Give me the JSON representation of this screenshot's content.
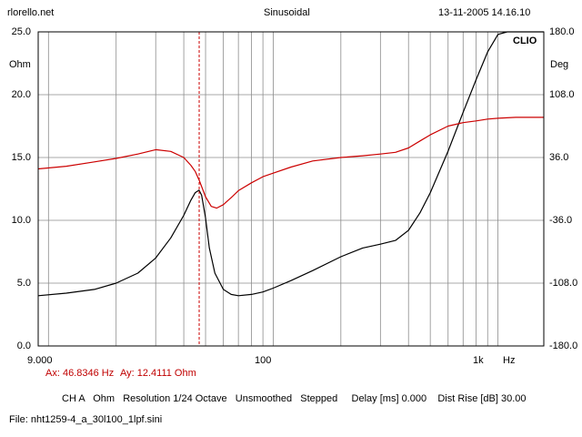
{
  "header": {
    "site": "rlorello.net",
    "title": "Sinusoidal",
    "datetime": "13-11-2005 14.16.10"
  },
  "logo": "CLIO",
  "axes": {
    "left_unit": "Ohm",
    "right_unit": "Deg",
    "x_unit": "Hz",
    "left_ticks": [
      "25.0",
      "20.0",
      "15.0",
      "10.0",
      "5.0",
      "0.0"
    ],
    "right_ticks": [
      "180.0",
      "108.0",
      "36.0",
      "-36.0",
      "-108.0",
      "-180.0"
    ],
    "x_ticks": [
      "9.000",
      "100",
      "1k"
    ]
  },
  "cursor": {
    "freq_label": "Ax: 46.8346 Hz",
    "value_label": "Ay: 12.4111 Ohm"
  },
  "settings_line": "CH A   Ohm   Resolution 1/24 Octave   Unsmoothed   Stepped     Delay [ms] 0.000    Dist Rise [dB] 30.00",
  "file_line": "File: nht1259-4_a_30l100_1lpf.sini",
  "colors": {
    "impedance": "#000000",
    "phase": "#cc0000",
    "cursor": "#cc0000",
    "grid": "#8c8c8c"
  },
  "chart_data": {
    "type": "line",
    "x_scale": "log",
    "xlim": [
      9,
      1600
    ],
    "ylim_left": [
      0,
      25
    ],
    "ylim_right": [
      -180,
      180
    ],
    "grid": true,
    "cursor_x": 46.8346,
    "series": [
      {
        "name": "Ohm",
        "axis": "left",
        "x": [
          9,
          12,
          16,
          20,
          25,
          30,
          35,
          40,
          43,
          45,
          46.8,
          48,
          50,
          52,
          55,
          60,
          65,
          70,
          80,
          90,
          100,
          120,
          150,
          200,
          250,
          300,
          350,
          400,
          450,
          500,
          600,
          700,
          800,
          900,
          1000,
          1100,
          1200,
          1600
        ],
        "y": [
          4.0,
          4.2,
          4.5,
          5.0,
          5.8,
          7.0,
          8.6,
          10.4,
          11.6,
          12.2,
          12.4,
          12.0,
          10.2,
          7.8,
          5.8,
          4.5,
          4.1,
          4.0,
          4.1,
          4.3,
          4.6,
          5.2,
          6.0,
          7.1,
          7.8,
          8.1,
          8.4,
          9.2,
          10.6,
          12.2,
          15.5,
          18.6,
          21.2,
          23.4,
          24.8,
          25.0,
          25.0,
          25.0
        ]
      },
      {
        "name": "Deg",
        "axis": "right",
        "x": [
          9,
          12,
          16,
          20,
          25,
          30,
          35,
          40,
          43,
          45,
          47,
          50,
          53,
          56,
          60,
          65,
          70,
          80,
          90,
          100,
          120,
          150,
          200,
          250,
          300,
          350,
          400,
          450,
          500,
          600,
          700,
          800,
          900,
          1000,
          1200,
          1600
        ],
        "y": [
          23,
          26,
          31,
          35,
          40,
          45,
          43,
          36,
          27,
          20,
          9,
          -9,
          -20,
          -22,
          -18,
          -10,
          -2,
          7,
          14,
          18,
          25,
          32,
          36,
          38,
          40,
          42,
          47,
          55,
          62,
          72,
          76,
          78,
          80,
          81,
          82,
          82
        ]
      }
    ]
  }
}
